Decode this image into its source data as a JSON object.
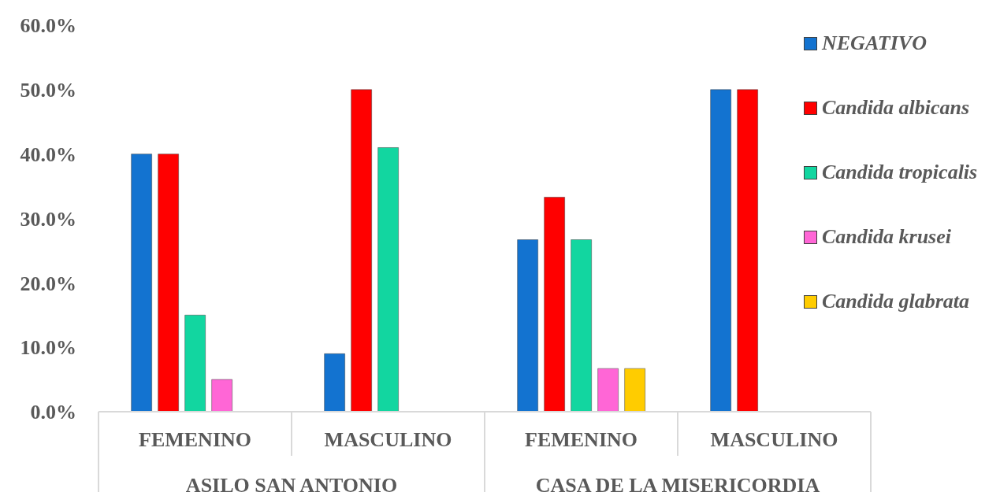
{
  "chart_data": {
    "type": "bar",
    "categories": [
      "FEMENINO",
      "MASCULINO",
      "FEMENINO",
      "MASCULINO"
    ],
    "annotations": [
      "ASILO SAN ANTONIO",
      "CASA DE LA MISERICORDIA"
    ],
    "series": [
      {
        "name": "NEGATIVO",
        "color": "#1373d0",
        "values": [
          40,
          9,
          26.7,
          50
        ]
      },
      {
        "name": "Candida albicans",
        "color": "#ff0000",
        "values": [
          40,
          50,
          33.3,
          50
        ]
      },
      {
        "name": "Candida tropicalis",
        "color": "#12d6a0",
        "values": [
          15,
          41,
          26.7,
          null
        ]
      },
      {
        "name": "Candida krusei",
        "color": "#ff66d6",
        "values": [
          5,
          null,
          6.7,
          null
        ]
      },
      {
        "name": "Candida glabrata",
        "color": "#ffcc00",
        "values": [
          null,
          null,
          6.7,
          null
        ]
      }
    ],
    "ylim": [
      0,
      60
    ],
    "yticks": [
      {
        "value": 0,
        "label": "0.0%"
      },
      {
        "value": 10,
        "label": "10.0%"
      },
      {
        "value": 20,
        "label": "20.0%"
      },
      {
        "value": 30,
        "label": "30.0%"
      },
      {
        "value": 40,
        "label": "40.0%"
      },
      {
        "value": 50,
        "label": "50.0%"
      },
      {
        "value": 60,
        "label": "60.0%"
      }
    ],
    "grid": false,
    "legend": "top right"
  }
}
